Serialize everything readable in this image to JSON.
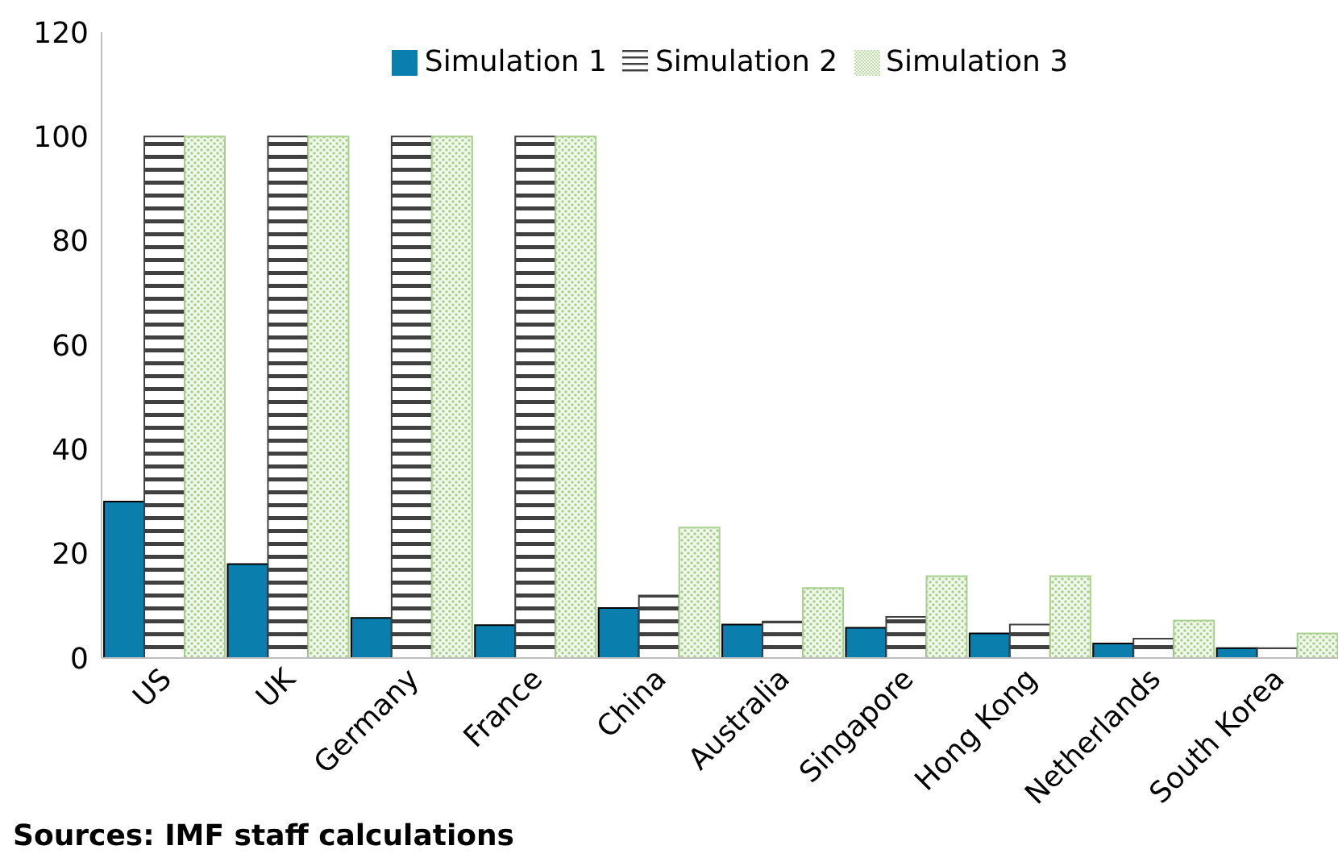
{
  "chart_data": {
    "type": "bar",
    "categories": [
      "US",
      "UK",
      "Germany",
      "France",
      "China",
      "Australia",
      "Singapore",
      "Hong Kong",
      "Netherlands",
      "South Korea"
    ],
    "series": [
      {
        "name": "Simulation 1",
        "color": "#0a7fad",
        "values": [
          30,
          18,
          7.7,
          6.3,
          9.6,
          6.4,
          5.8,
          4.7,
          2.8,
          1.9
        ]
      },
      {
        "name": "Simulation 2",
        "color": "#404040",
        "values": [
          100,
          100,
          100,
          100,
          12,
          7,
          7.9,
          6.4,
          3.7,
          1.9
        ]
      },
      {
        "name": "Simulation 3",
        "color": "#a9d18e",
        "values": [
          100,
          100,
          100,
          100,
          25,
          13.4,
          15.7,
          15.7,
          7.2,
          4.7
        ]
      }
    ],
    "ylim": [
      0,
      120
    ],
    "yticks": [
      0,
      20,
      40,
      60,
      80,
      100,
      120
    ],
    "grid": false,
    "legend": "top",
    "annotations": [
      "Sources: IMF staff calculations"
    ]
  }
}
